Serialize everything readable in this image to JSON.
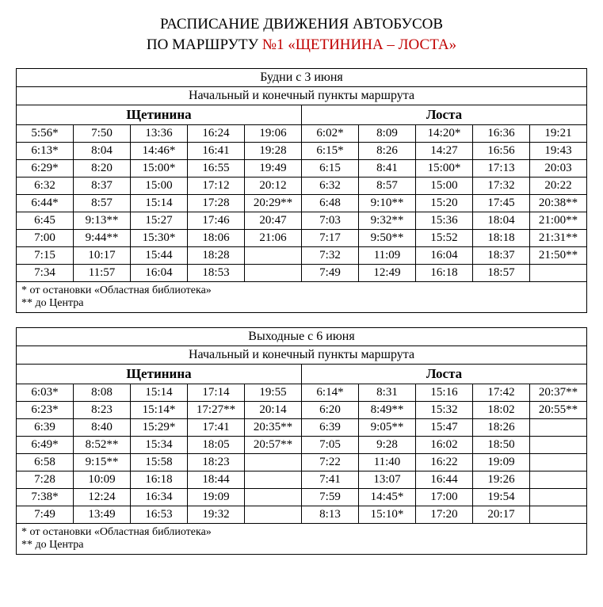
{
  "title_line1": "РАСПИСАНИЕ ДВИЖЕНИЯ АВТОБУСОВ",
  "title_line2_prefix": "ПО МАРШРУТУ ",
  "route_number": "№1 «ЩЕТИНИНА – ЛОСТА»",
  "colors": {
    "route_number": "#c00000",
    "text": "#000000",
    "background": "#ffffff",
    "border": "#000000"
  },
  "fontsizes": {
    "title": 19,
    "section_header": 16,
    "stop_header": 17,
    "cell": 15,
    "footnote": 14
  },
  "tables": [
    {
      "period": "Будни с 3 июня",
      "subheader": "Начальный и конечный пункты маршрута",
      "stops": [
        "Щетинина",
        "Лоста"
      ],
      "columns_per_stop": 5,
      "rows": [
        [
          "5:56*",
          "7:50",
          "13:36",
          "16:24",
          "19:06",
          "6:02*",
          "8:09",
          "14:20*",
          "16:36",
          "19:21"
        ],
        [
          "6:13*",
          "8:04",
          "14:46*",
          "16:41",
          "19:28",
          "6:15*",
          "8:26",
          "14:27",
          "16:56",
          "19:43"
        ],
        [
          "6:29*",
          "8:20",
          "15:00*",
          "16:55",
          "19:49",
          "6:15",
          "8:41",
          "15:00*",
          "17:13",
          "20:03"
        ],
        [
          "6:32",
          "8:37",
          "15:00",
          "17:12",
          "20:12",
          "6:32",
          "8:57",
          "15:00",
          "17:32",
          "20:22"
        ],
        [
          "6:44*",
          "8:57",
          "15:14",
          "17:28",
          "20:29**",
          "6:48",
          "9:10**",
          "15:20",
          "17:45",
          "20:38**"
        ],
        [
          "6:45",
          "9:13**",
          "15:27",
          "17:46",
          "20:47",
          "7:03",
          "9:32**",
          "15:36",
          "18:04",
          "21:00**"
        ],
        [
          "7:00",
          "9:44**",
          "15:30*",
          "18:06",
          "21:06",
          "7:17",
          "9:50**",
          "15:52",
          "18:18",
          "21:31**"
        ],
        [
          "7:15",
          "10:17",
          "15:44",
          "18:28",
          "",
          "7:32",
          "11:09",
          "16:04",
          "18:37",
          "21:50**"
        ],
        [
          "7:34",
          "11:57",
          "16:04",
          "18:53",
          "",
          "7:49",
          "12:49",
          "16:18",
          "18:57",
          ""
        ]
      ],
      "footnotes": [
        "* от остановки «Областная библиотека»",
        "** до Центра"
      ]
    },
    {
      "period": "Выходные с 6 июня",
      "subheader": "Начальный и конечный пункты маршрута",
      "stops": [
        "Щетинина",
        "Лоста"
      ],
      "columns_per_stop": 5,
      "rows": [
        [
          "6:03*",
          "8:08",
          "15:14",
          "17:14",
          "19:55",
          "6:14*",
          "8:31",
          "15:16",
          "17:42",
          "20:37**"
        ],
        [
          "6:23*",
          "8:23",
          "15:14*",
          "17:27**",
          "20:14",
          "6:20",
          "8:49**",
          "15:32",
          "18:02",
          "20:55**"
        ],
        [
          "6:39",
          "8:40",
          "15:29*",
          "17:41",
          "20:35**",
          "6:39",
          "9:05**",
          "15:47",
          "18:26",
          ""
        ],
        [
          "6:49*",
          "8:52**",
          "15:34",
          "18:05",
          "20:57**",
          "7:05",
          "9:28",
          "16:02",
          "18:50",
          ""
        ],
        [
          "6:58",
          "9:15**",
          "15:58",
          "18:23",
          "",
          "7:22",
          "11:40",
          "16:22",
          "19:09",
          ""
        ],
        [
          "7:28",
          "10:09",
          "16:18",
          "18:44",
          "",
          "7:41",
          "13:07",
          "16:44",
          "19:26",
          ""
        ],
        [
          "7:38*",
          "12:24",
          "16:34",
          "19:09",
          "",
          "7:59",
          "14:45*",
          "17:00",
          "19:54",
          ""
        ],
        [
          "7:49",
          "13:49",
          "16:53",
          "19:32",
          "",
          "8:13",
          "15:10*",
          "17:20",
          "20:17",
          ""
        ]
      ],
      "footnotes": [
        "* от остановки «Областная библиотека»",
        "** до Центра"
      ]
    }
  ]
}
